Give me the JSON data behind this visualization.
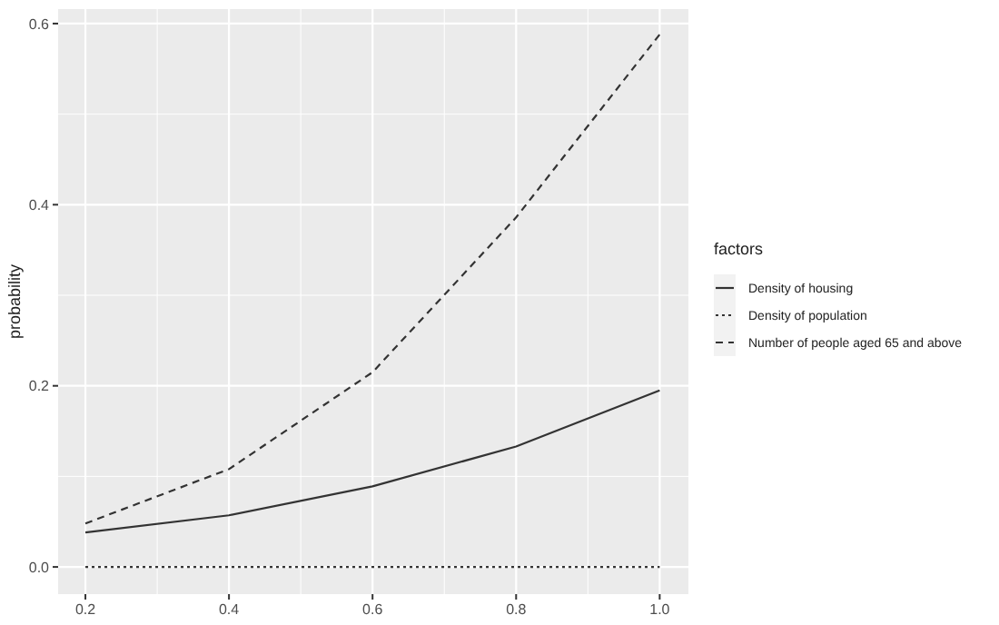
{
  "chart_data": {
    "type": "line",
    "ylabel": "probability",
    "legend_title": "factors",
    "legend": "right",
    "grid": true,
    "x": [
      0.2,
      0.4,
      0.6,
      0.8,
      1.0
    ],
    "xlim": [
      0.162,
      1.04
    ],
    "xticks": [
      {
        "value": 0.2,
        "label": "0.2"
      },
      {
        "value": 0.4,
        "label": "0.4"
      },
      {
        "value": 0.6,
        "label": "0.6"
      },
      {
        "value": 0.8,
        "label": "0.8"
      },
      {
        "value": 1.0,
        "label": "1.0"
      }
    ],
    "ylim": [
      -0.03,
      0.616
    ],
    "yticks": [
      {
        "value": 0,
        "label": "0.0"
      },
      {
        "value": 0.2,
        "label": "0.2"
      },
      {
        "value": 0.4,
        "label": "0.4"
      },
      {
        "value": 0.6,
        "label": "0.6"
      }
    ],
    "series": [
      {
        "name": "Density of housing",
        "color": "#333333",
        "line_style": "solid",
        "values": [
          0.038,
          0.057,
          0.089,
          0.133,
          0.195
        ]
      },
      {
        "name": "Density of population",
        "color": "#333333",
        "line_style": "dotted",
        "values": [
          0,
          0,
          0,
          0,
          0
        ]
      },
      {
        "name": "Number of people aged 65 and above",
        "color": "#333333",
        "line_style": "dashed",
        "values": [
          0.048,
          0.108,
          0.215,
          0.386,
          0.588
        ]
      }
    ]
  }
}
